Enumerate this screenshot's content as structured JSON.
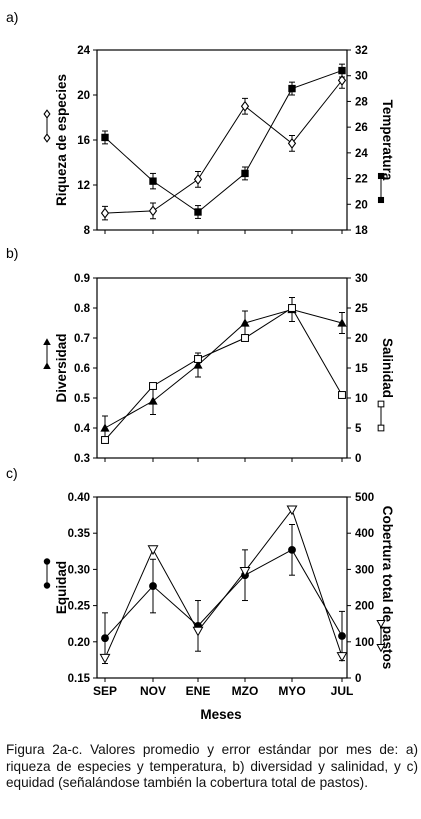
{
  "figure_caption": "Figura 2a-c. Valores promedio y error estándar por mes de: a) riqueza de especies y temperatura, b) diversidad y salinidad, y c) equidad (señalándose también la cobertura total de pastos).",
  "x_axis_title": "Meses",
  "chart_data": [
    {
      "panel_label": "a)",
      "type": "line",
      "categories": [
        "SEP",
        "NOV",
        "ENE",
        "MZO",
        "MYO",
        "JUL"
      ],
      "ylabel_left": "Riqueza de especies",
      "ylabel_right": "Temperatura",
      "ylim_left": [
        8,
        24
      ],
      "yticks_left": [
        8,
        12,
        16,
        20,
        24
      ],
      "ylim_right": [
        18,
        32
      ],
      "yticks_right": [
        18,
        20,
        22,
        24,
        26,
        28,
        30,
        32
      ],
      "series": [
        {
          "axis": "left",
          "marker": "open-diamond",
          "values": [
            9.5,
            9.7,
            12.5,
            19.0,
            15.7,
            21.3
          ],
          "error": [
            0.6,
            0.7,
            0.7,
            0.7,
            0.7,
            0.7
          ]
        },
        {
          "axis": "right",
          "marker": "filled-square",
          "values": [
            25.2,
            21.8,
            19.4,
            22.4,
            29.0,
            30.4
          ],
          "error": [
            0.5,
            0.6,
            0.5,
            0.5,
            0.5,
            0.5
          ]
        }
      ]
    },
    {
      "panel_label": "b)",
      "type": "line",
      "categories": [
        "SEP",
        "NOV",
        "ENE",
        "MZO",
        "MYO",
        "JUL"
      ],
      "ylabel_left": "Diversidad",
      "ylabel_right": "Salinidad",
      "ylim_left": [
        0.3,
        0.9
      ],
      "yticks_left": [
        "0.3",
        "0.4",
        "0.5",
        "0.6",
        "0.7",
        "0.8",
        "0.9"
      ],
      "ylim_right": [
        0,
        30
      ],
      "yticks_right": [
        0,
        5,
        10,
        15,
        20,
        25,
        30
      ],
      "series": [
        {
          "axis": "left",
          "marker": "filled-triangle",
          "values": [
            0.4,
            0.49,
            0.61,
            0.75,
            0.795,
            0.75
          ],
          "error": [
            0.04,
            0.045,
            0.04,
            0.04,
            0.04,
            0.035
          ]
        },
        {
          "axis": "right",
          "marker": "open-square",
          "values": [
            3.0,
            12.0,
            16.5,
            20.0,
            25.0,
            10.5
          ],
          "error": [
            0,
            0,
            0,
            0,
            0,
            0
          ]
        }
      ]
    },
    {
      "panel_label": "c)",
      "type": "line",
      "categories": [
        "SEP",
        "NOV",
        "ENE",
        "MZO",
        "MYO",
        "JUL"
      ],
      "ylabel_left": "Equidad",
      "ylabel_right": "Cobertura total de pastos",
      "ylim_left": [
        0.15,
        0.4
      ],
      "yticks_left": [
        "0.15",
        "0.20",
        "0.25",
        "0.30",
        "0.35",
        "0.40"
      ],
      "ylim_right": [
        0,
        500
      ],
      "yticks_right": [
        0,
        100,
        200,
        300,
        400,
        500
      ],
      "series": [
        {
          "axis": "left",
          "marker": "filled-circle",
          "values": [
            0.205,
            0.277,
            0.222,
            0.292,
            0.327,
            0.208
          ],
          "error": [
            0.035,
            0.037,
            0.035,
            0.035,
            0.035,
            0.034
          ]
        },
        {
          "axis": "right",
          "marker": "open-triangle-down",
          "values": [
            55,
            355,
            130,
            295,
            465,
            60
          ],
          "error": [
            0,
            0,
            0,
            0,
            0,
            0
          ]
        }
      ]
    }
  ]
}
